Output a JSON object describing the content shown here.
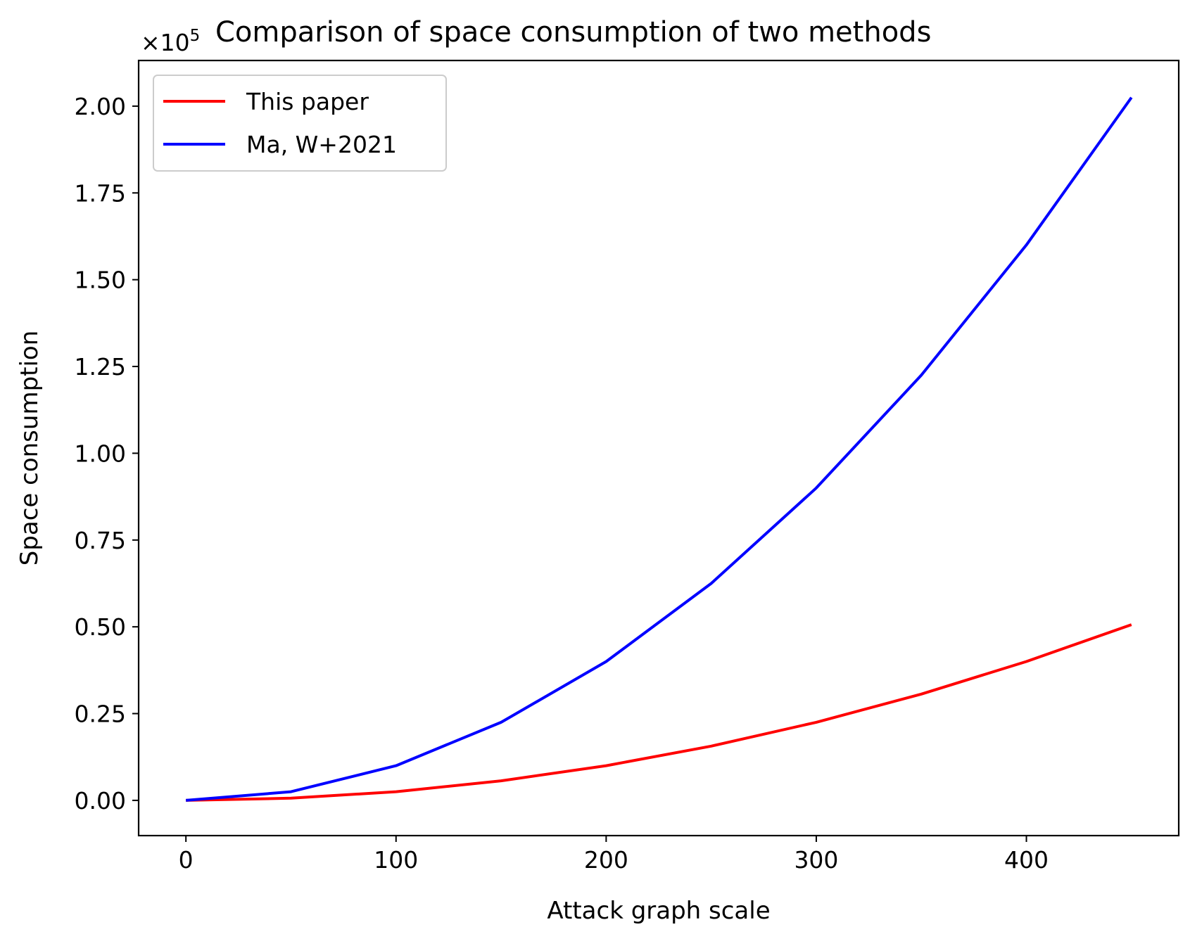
{
  "chart_data": {
    "type": "line",
    "title": "Comparison of space consumption of two methods",
    "xlabel": "Attack graph scale",
    "ylabel": "Space consumption",
    "y_offset_text": "×10",
    "y_offset_exponent": "5",
    "xlim": [
      -22.5,
      472.5
    ],
    "ylim": [
      -0.1015,
      2.1315
    ],
    "x_ticks": [
      0,
      100,
      200,
      300,
      400
    ],
    "x_tick_labels": [
      "0",
      "100",
      "200",
      "300",
      "400"
    ],
    "y_ticks": [
      0,
      0.25,
      0.5,
      0.75,
      1.0,
      1.25,
      1.5,
      1.75,
      2.0
    ],
    "y_tick_labels": [
      "0.00",
      "0.25",
      "0.50",
      "0.75",
      "1.00",
      "1.25",
      "1.50",
      "1.75",
      "2.00"
    ],
    "grid": false,
    "legend_position": "top-left",
    "x": [
      0,
      50,
      100,
      150,
      200,
      250,
      300,
      350,
      400,
      450
    ],
    "series": [
      {
        "name": "This paper",
        "color": "#ff0000",
        "values": [
          0,
          0.00625,
          0.025,
          0.05625,
          0.1,
          0.15625,
          0.225,
          0.30625,
          0.4,
          0.50625
        ]
      },
      {
        "name": "Ma, W+2021",
        "color": "#0000ff",
        "values": [
          0,
          0.025,
          0.1,
          0.225,
          0.4,
          0.625,
          0.9,
          1.225,
          1.6,
          2.025
        ]
      }
    ]
  }
}
